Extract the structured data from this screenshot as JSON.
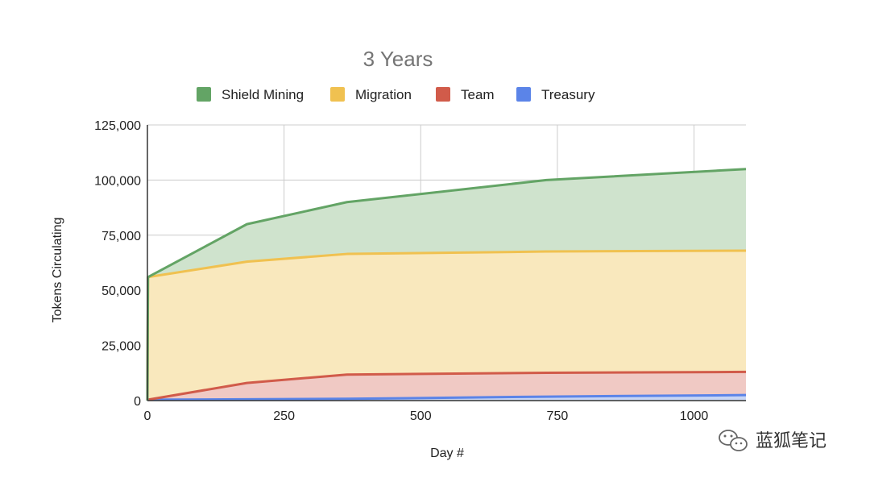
{
  "chart_data": {
    "type": "area",
    "stacked": true,
    "title": "3 Years",
    "xlabel": "Day #",
    "ylabel": "Tokens Circulating",
    "xlim": [
      0,
      1095
    ],
    "ylim": [
      0,
      125000
    ],
    "xticks": [
      0,
      250,
      500,
      750,
      1000
    ],
    "xtick_labels": [
      "0",
      "250",
      "500",
      "750",
      "1000"
    ],
    "yticks": [
      0,
      25000,
      50000,
      75000,
      100000,
      125000
    ],
    "ytick_labels": [
      "0",
      "25,000",
      "50,000",
      "75,000",
      "100,000",
      "125,000"
    ],
    "grid": true,
    "legend_position": "top",
    "x": [
      0,
      1,
      182,
      365,
      730,
      1095
    ],
    "series": [
      {
        "name": "Treasury",
        "color": "#5b84e8",
        "fill": "#c8d6f5",
        "values": [
          0,
          400,
          600,
          800,
          1800,
          2500
        ]
      },
      {
        "name": "Team",
        "color": "#d15b4a",
        "fill": "#f0c9c4",
        "values": [
          0,
          0,
          7400,
          11000,
          10800,
          10500
        ]
      },
      {
        "name": "Migration",
        "color": "#f0c150",
        "fill": "#f9e8bd",
        "values": [
          0,
          55600,
          55000,
          54700,
          55000,
          55000
        ]
      },
      {
        "name": "Shield Mining",
        "color": "#63a465",
        "fill": "#cfe3cd",
        "values": [
          0,
          0,
          17000,
          23500,
          32400,
          37000
        ]
      }
    ],
    "legend_order": [
      "Shield Mining",
      "Migration",
      "Team",
      "Treasury"
    ]
  },
  "watermark": {
    "icon": "wechat-icon",
    "text": "蓝狐笔记"
  }
}
